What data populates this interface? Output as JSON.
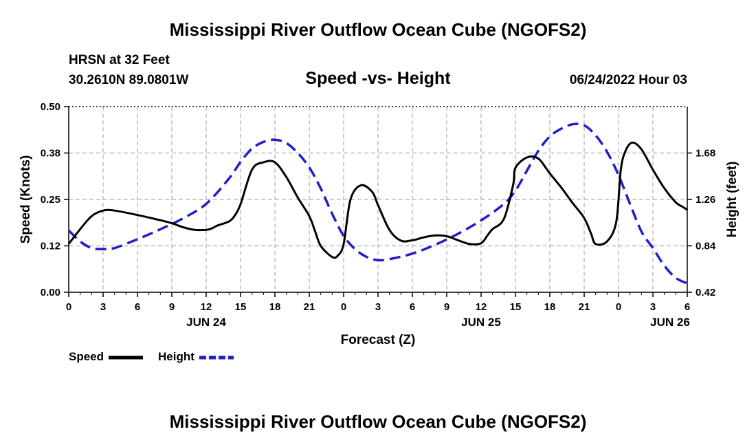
{
  "header": {
    "title": "Mississippi River Outflow Ocean Cube (NGOFS2)",
    "station": "HRSN at 32 Feet",
    "coords": "30.2610N  89.0801W",
    "subtitle": "Speed -vs- Height",
    "datetime": "06/24/2022 Hour 03"
  },
  "footer": {
    "title": "Mississippi River Outflow Ocean Cube (NGOFS2)"
  },
  "chart_data": {
    "type": "line",
    "title": "Speed -vs- Height",
    "xlabel": "Forecast (Z)",
    "ylabel": "Speed (Knots)",
    "y2label": "Height (feet)",
    "xlim": [
      0,
      54
    ],
    "ylim": [
      0,
      0.5
    ],
    "y2lim": [
      0.42,
      2.1
    ],
    "grid": true,
    "legend_position": "bottom-left",
    "x_ticks": [
      0,
      3,
      6,
      9,
      12,
      15,
      18,
      21,
      24,
      27,
      30,
      33,
      36,
      39,
      42,
      45,
      48,
      51,
      54
    ],
    "x_tick_labels": [
      "0",
      "3",
      "6",
      "9",
      "12",
      "15",
      "18",
      "21",
      "0",
      "3",
      "6",
      "9",
      "12",
      "15",
      "18",
      "21",
      "0",
      "3",
      "6"
    ],
    "date_labels": [
      {
        "x": 12,
        "label": "JUN 24"
      },
      {
        "x": 36,
        "label": "JUN 25"
      },
      {
        "x": 52.5,
        "label": "JUN 26"
      }
    ],
    "y_ticks": [
      0,
      0.125,
      0.25,
      0.375,
      0.5
    ],
    "y_tick_labels": [
      "0.00",
      "0.12",
      "0.25",
      "0.38",
      "0.50"
    ],
    "y2_ticks": [
      0.42,
      0.84,
      1.26,
      1.68
    ],
    "y2_tick_labels": [
      "0.42",
      "0.84",
      "1.26",
      "1.68"
    ],
    "series": [
      {
        "name": "Speed",
        "axis": "left",
        "color": "#000000",
        "dash": "solid",
        "x": [
          0,
          1,
          2,
          3,
          4,
          6,
          8,
          9,
          10,
          11,
          12,
          12.5,
          13,
          14,
          14.5,
          15,
          16,
          17,
          18,
          19,
          20,
          21,
          21.5,
          22,
          23,
          23.5,
          24,
          24.6,
          25.5,
          26.5,
          27,
          28,
          29,
          30,
          31,
          32,
          33,
          34,
          35,
          36,
          36.6,
          37,
          38,
          38.8,
          39,
          40,
          41,
          42,
          43,
          44,
          45,
          45.6,
          46,
          47,
          47.8,
          48.2,
          48.6,
          49.2,
          50,
          51,
          52,
          53,
          53.6,
          54
        ],
        "values": [
          0.13,
          0.17,
          0.205,
          0.22,
          0.22,
          0.208,
          0.194,
          0.186,
          0.175,
          0.168,
          0.168,
          0.172,
          0.18,
          0.191,
          0.207,
          0.237,
          0.33,
          0.35,
          0.35,
          0.31,
          0.255,
          0.205,
          0.165,
          0.125,
          0.095,
          0.099,
          0.13,
          0.25,
          0.288,
          0.27,
          0.235,
          0.168,
          0.139,
          0.14,
          0.148,
          0.153,
          0.151,
          0.14,
          0.13,
          0.132,
          0.155,
          0.17,
          0.198,
          0.29,
          0.335,
          0.363,
          0.36,
          0.32,
          0.282,
          0.24,
          0.2,
          0.158,
          0.13,
          0.137,
          0.19,
          0.33,
          0.38,
          0.403,
          0.385,
          0.33,
          0.28,
          0.242,
          0.23,
          0.222
        ],
        "label_note": "speed in knots"
      },
      {
        "name": "Height",
        "axis": "right",
        "color": "#1f1fc8",
        "dash": "dashed",
        "x": [
          0,
          1,
          2,
          3,
          4,
          6,
          8,
          10,
          12,
          14,
          15,
          16,
          17,
          18,
          19,
          20,
          21,
          22,
          23,
          24,
          25,
          26,
          27,
          28,
          30,
          32,
          34,
          36,
          38,
          39,
          40,
          41,
          42,
          43,
          44,
          45,
          46,
          47,
          48,
          49,
          50,
          51,
          52,
          53,
          54
        ],
        "values": [
          0.98,
          0.88,
          0.82,
          0.81,
          0.82,
          0.9,
          0.99,
          1.09,
          1.22,
          1.45,
          1.6,
          1.72,
          1.78,
          1.8,
          1.77,
          1.68,
          1.55,
          1.36,
          1.13,
          0.93,
          0.81,
          0.74,
          0.71,
          0.72,
          0.77,
          0.85,
          0.95,
          1.07,
          1.22,
          1.34,
          1.52,
          1.7,
          1.83,
          1.9,
          1.94,
          1.93,
          1.84,
          1.69,
          1.48,
          1.22,
          0.97,
          0.82,
          0.66,
          0.55,
          0.5
        ],
        "label_note": "height in feet"
      }
    ]
  }
}
